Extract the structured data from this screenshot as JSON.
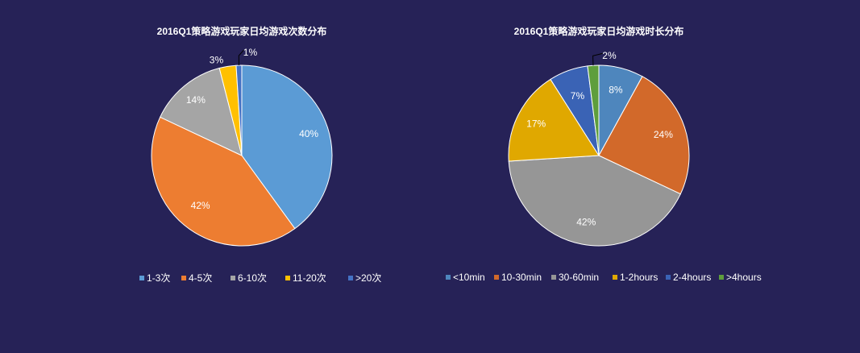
{
  "chart_data": [
    {
      "type": "pie",
      "title": "2016Q1策略游戏玩家日均游戏次数分布",
      "categories": [
        "1-3次",
        "4-5次",
        "6-10次",
        "11-20次",
        ">20次"
      ],
      "values": [
        40,
        42,
        14,
        3,
        1
      ],
      "labels": [
        "40%",
        "42%",
        "14%",
        "3%",
        "1%"
      ],
      "colors": [
        "#5b9bd5",
        "#ed7d31",
        "#a5a5a5",
        "#ffc000",
        "#4472c4"
      ],
      "legend_position": "bottom"
    },
    {
      "type": "pie",
      "title": "2016Q1策略游戏玩家日均游戏时长分布",
      "categories": [
        "<10min",
        "10-30min",
        "30-60min",
        "1-2hours",
        "2-4hours",
        ">4hours"
      ],
      "values": [
        8,
        24,
        42,
        17,
        7,
        2
      ],
      "labels": [
        "8%",
        "24%",
        "42%",
        "17%",
        "7%",
        "2%"
      ],
      "colors": [
        "#4e86bd",
        "#d2692a",
        "#969696",
        "#e0a800",
        "#3a63b5",
        "#5e9e3c"
      ],
      "legend_position": "bottom"
    }
  ]
}
